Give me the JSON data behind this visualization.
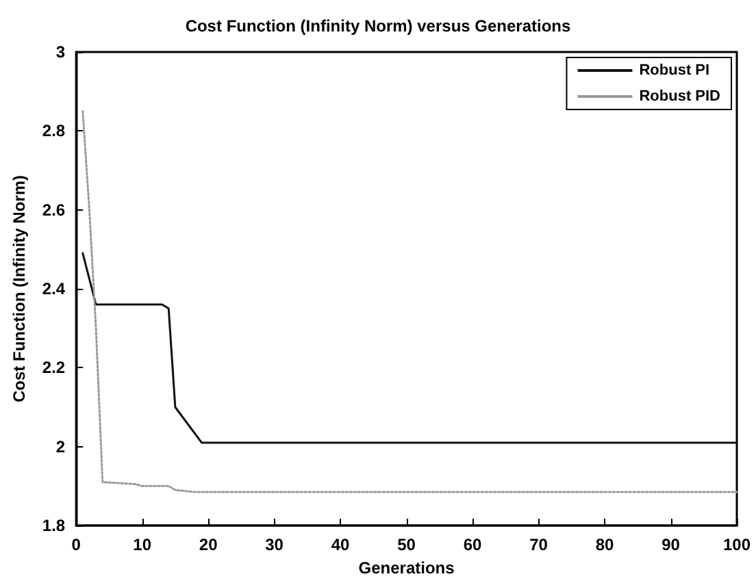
{
  "chart_data": {
    "type": "line",
    "title": "Cost Function (Infinity Norm) versus Generations",
    "xlabel": "Generations",
    "ylabel": "Cost Function (Infinity Norm)",
    "xlim": [
      0,
      100
    ],
    "xticks": [
      0,
      10,
      20,
      30,
      40,
      50,
      60,
      70,
      80,
      90,
      100
    ],
    "ylim": [
      1.8,
      3
    ],
    "yticks": [
      1.8,
      2,
      2.2,
      2.4,
      2.6,
      2.8,
      3
    ],
    "grid": false,
    "legend": "top right",
    "marker": "none",
    "series": [
      {
        "name": "Robust PI",
        "color": "#111111",
        "line_style": "solid",
        "x": [
          1,
          3,
          13,
          14,
          15,
          19,
          100
        ],
        "values": [
          2.49,
          2.36,
          2.36,
          2.35,
          2.1,
          2.01,
          2.01
        ]
      },
      {
        "name": "Robust PID",
        "color": "#999999",
        "line_style": "dotted",
        "x": [
          1,
          2,
          3,
          4,
          9,
          10,
          14,
          15,
          18,
          100
        ],
        "values": [
          2.85,
          2.6,
          2.3,
          1.91,
          1.905,
          1.9,
          1.9,
          1.89,
          1.885,
          1.885
        ]
      }
    ]
  }
}
